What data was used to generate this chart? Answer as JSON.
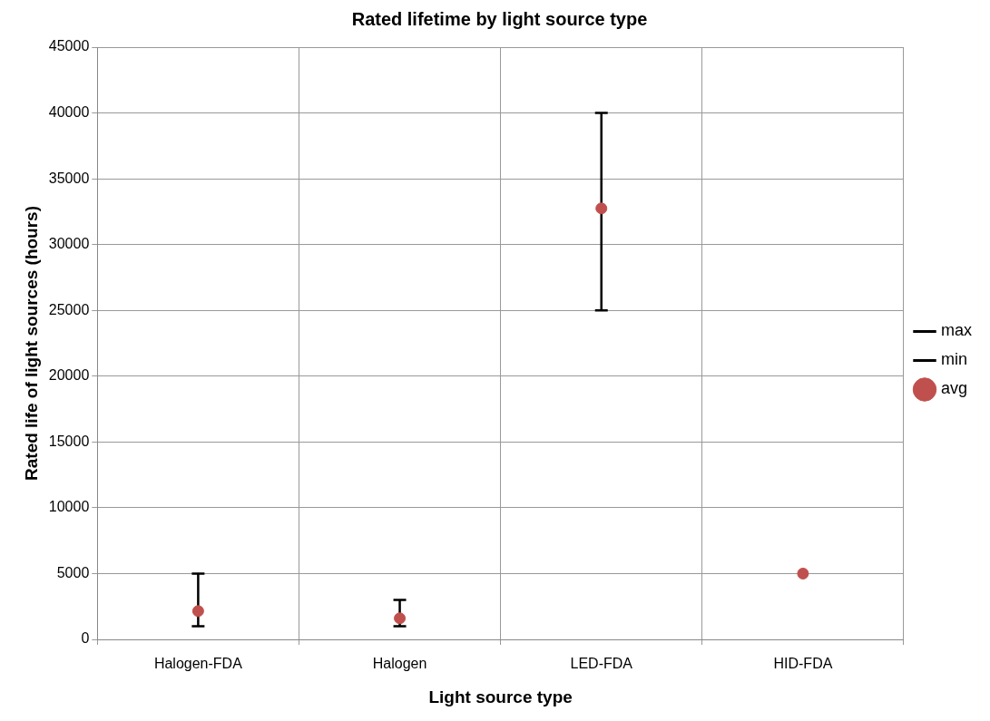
{
  "chart_data": {
    "type": "scatter",
    "title": "Rated lifetime by light source type",
    "xlabel": "Light source type",
    "ylabel": "Rated life of light sources (hours)",
    "categories": [
      "Halogen-FDA",
      "Halogen",
      "LED-FDA",
      "HID-FDA"
    ],
    "series": [
      {
        "name": "max",
        "color": "#000000",
        "marker": "none",
        "values": [
          null,
          null,
          null,
          null
        ]
      },
      {
        "name": "min",
        "color": "#000000",
        "marker": "none",
        "values": [
          null,
          null,
          null,
          null
        ]
      },
      {
        "name": "avg",
        "color": "#c0504d",
        "marker": "circle",
        "values": [
          2150,
          1600,
          32750,
          5000
        ],
        "errors": [
          [
            1000,
            5000
          ],
          [
            1000,
            3000
          ],
          [
            25000,
            40000
          ],
          null
        ]
      }
    ],
    "ylim": [
      0,
      45000
    ],
    "yticks": [
      0,
      5000,
      10000,
      15000,
      20000,
      25000,
      30000,
      35000,
      40000,
      45000
    ],
    "grid": true,
    "legend": "right"
  }
}
